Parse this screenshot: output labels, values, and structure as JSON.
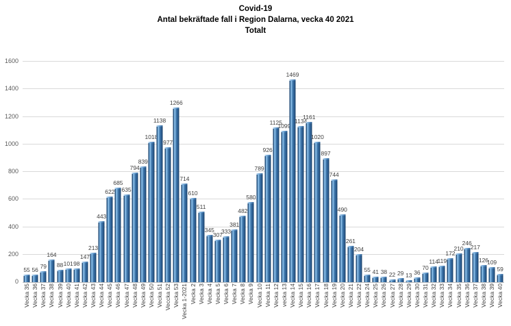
{
  "title": {
    "line1": "Covid-19",
    "line2": "Antal bekräftade fall i Region Dalarna, vecka 40 2021",
    "line3": "Totalt"
  },
  "colors": {
    "bar_light": "#8fc0e8",
    "bar_main": "#3e77ab",
    "bar_dark": "#163a61",
    "gridline": "#d9d9d9",
    "axis_line": "#bfbfbf",
    "axis_text": "#595959",
    "value_text": "#3f3f3f",
    "title_text": "#000000",
    "background": "#ffffff"
  },
  "chart_data": {
    "type": "bar",
    "title": "Covid-19 — Antal bekräftade fall i Region Dalarna, vecka 40 2021 — Totalt",
    "xlabel": "",
    "ylabel": "",
    "ylim": [
      0,
      1600
    ],
    "yticks": [
      0,
      200,
      400,
      600,
      800,
      1000,
      1200,
      1400,
      1600
    ],
    "grid": true,
    "legend": false,
    "bar_value_labels": true,
    "categories": [
      "Vecka 35",
      "Vecka 36",
      "Vecka 37",
      "Vecka 38",
      "Vecka 39",
      "Vecka 40",
      "Vecka 41",
      "Vecka 42",
      "Vecka 43",
      "Vecka 44",
      "Vecka 45",
      "Vecka 46",
      "Vecka 47",
      "Vecka 48",
      "Vecka 49",
      "Vecka 50",
      "Vecka 51",
      "Veccka 52",
      "Vecka 53",
      "Vecka 1-2021",
      "Vecka 2",
      "Vecka 3",
      "Vecka 4",
      "Vecka 5",
      "Vecka 6",
      "Vecka 7",
      "Vecka 8",
      "Vecka 9",
      "Vecka 10",
      "Vecka 11",
      "Vecka 12",
      "vecka 13",
      "Vecka 14",
      "Vecka 15",
      "Vecka 16",
      "Vecka 17",
      "Vecka 18",
      "Vecka 19",
      "Vecka 20",
      "Vecka 21",
      "Vecka 22",
      "Vecka 24",
      "Vecka 25",
      "Vecka 26",
      "Vecka 27",
      "Vecka 28",
      "Vecka 29",
      "Vecka 30",
      "Vecka 31",
      "Vecka 32",
      "Vecka 33",
      "Vecka 34",
      "Vecka 35",
      "Vecka 36",
      "Vecka 37",
      "Vecka 38",
      "Vecka 39",
      "Vecka 40"
    ],
    "values": [
      55,
      56,
      79,
      164,
      88,
      101,
      98,
      147,
      213,
      443,
      622,
      685,
      635,
      794,
      839,
      1018,
      1138,
      977,
      1266,
      714,
      610,
      511,
      345,
      307,
      333,
      381,
      482,
      580,
      789,
      926,
      1125,
      1099,
      1469,
      1134,
      1161,
      1020,
      897,
      744,
      490,
      261,
      204,
      55,
      41,
      38,
      22,
      29,
      13,
      36,
      70,
      114,
      119,
      172,
      210,
      246,
      217,
      126,
      109,
      59
    ]
  }
}
